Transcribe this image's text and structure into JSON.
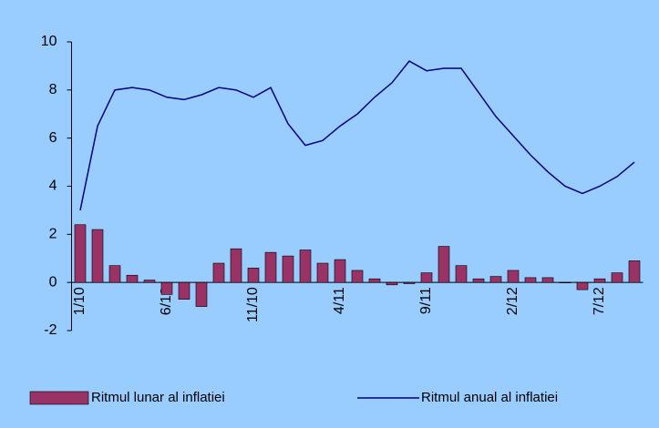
{
  "chart_data": {
    "type": "bar",
    "categories": [
      "1/10",
      null,
      null,
      null,
      null,
      "6/10",
      null,
      null,
      null,
      null,
      "11/10",
      null,
      null,
      null,
      null,
      "4/11",
      null,
      null,
      null,
      null,
      "9/11",
      null,
      null,
      null,
      null,
      "2/12",
      null,
      null,
      null,
      null,
      "7/12",
      null,
      null
    ],
    "series": [
      {
        "name": "Ritmul lunar al inflatiei",
        "type": "bar",
        "color": "#993366",
        "values": [
          2.4,
          2.2,
          0.7,
          0.3,
          0.1,
          -0.5,
          -0.7,
          -1.0,
          0.8,
          1.4,
          0.6,
          1.25,
          1.1,
          1.35,
          0.8,
          0.95,
          0.5,
          0.15,
          -0.1,
          -0.05,
          0.4,
          1.5,
          0.7,
          0.15,
          0.25,
          0.5,
          0.2,
          0.2,
          0,
          -0.3,
          0.15,
          0.4,
          0.9
        ]
      },
      {
        "name": "Ritmul anual al inflatiei",
        "type": "line",
        "color": "#000080",
        "values": [
          3.0,
          6.5,
          8.0,
          8.1,
          8.0,
          7.7,
          7.6,
          7.8,
          8.1,
          8.0,
          7.7,
          8.1,
          6.6,
          5.7,
          5.9,
          6.5,
          7.0,
          7.7,
          8.3,
          9.2,
          8.8,
          8.9,
          8.9,
          7.9,
          6.9,
          6.1,
          5.3,
          4.6,
          4.0,
          3.7,
          4.0,
          4.4,
          5.0
        ]
      }
    ],
    "ylim": [
      -2,
      10
    ],
    "yticks": [
      -2,
      0,
      2,
      4,
      6,
      8,
      10
    ],
    "grid": false,
    "legend": "bottom"
  }
}
